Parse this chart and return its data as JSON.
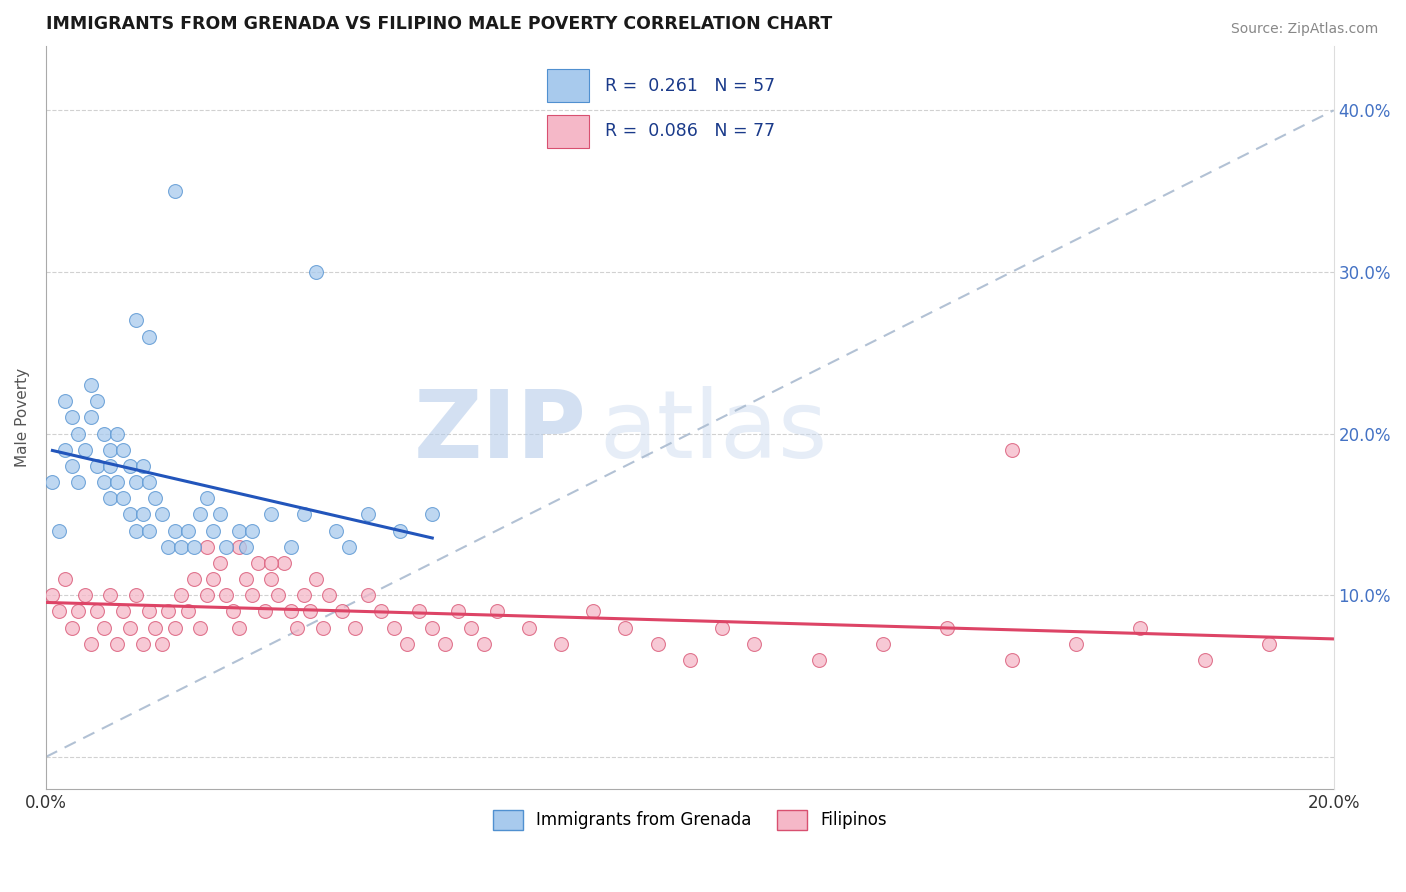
{
  "title": "IMMIGRANTS FROM GRENADA VS FILIPINO MALE POVERTY CORRELATION CHART",
  "source": "Source: ZipAtlas.com",
  "ylabel": "Male Poverty",
  "xlim": [
    0.0,
    0.2
  ],
  "ylim": [
    -0.02,
    0.44
  ],
  "xticks": [
    0.0,
    0.05,
    0.1,
    0.15,
    0.2
  ],
  "xtick_labels": [
    "0.0%",
    "",
    "",
    "",
    "20.0%"
  ],
  "yticks_right": [
    0.0,
    0.1,
    0.2,
    0.3,
    0.4
  ],
  "ytick_labels_right": [
    "",
    "10.0%",
    "20.0%",
    "30.0%",
    "40.0%"
  ],
  "legend_label1": "Immigrants from Grenada",
  "legend_label2": "Filipinos",
  "blue_color": "#A8CAED",
  "blue_edge": "#5090D0",
  "pink_color": "#F5B8C8",
  "pink_edge": "#D85070",
  "trend_blue": "#2255BB",
  "trend_pink": "#DD4466",
  "diag_color": "#AABBD0",
  "watermark_zip": "ZIP",
  "watermark_atlas": "atlas",
  "blue_scatter_x": [
    0.001,
    0.002,
    0.003,
    0.003,
    0.004,
    0.004,
    0.005,
    0.005,
    0.006,
    0.007,
    0.007,
    0.008,
    0.008,
    0.009,
    0.009,
    0.01,
    0.01,
    0.01,
    0.011,
    0.011,
    0.012,
    0.012,
    0.013,
    0.013,
    0.014,
    0.014,
    0.015,
    0.015,
    0.016,
    0.016,
    0.017,
    0.018,
    0.019,
    0.02,
    0.021,
    0.022,
    0.023,
    0.025,
    0.026,
    0.027,
    0.028,
    0.03,
    0.031,
    0.032,
    0.035,
    0.038,
    0.04,
    0.042,
    0.045,
    0.047,
    0.05,
    0.055,
    0.06,
    0.02,
    0.014,
    0.016,
    0.024
  ],
  "blue_scatter_y": [
    0.17,
    0.14,
    0.22,
    0.19,
    0.21,
    0.18,
    0.2,
    0.17,
    0.19,
    0.23,
    0.21,
    0.22,
    0.18,
    0.2,
    0.17,
    0.19,
    0.18,
    0.16,
    0.2,
    0.17,
    0.19,
    0.16,
    0.18,
    0.15,
    0.17,
    0.14,
    0.18,
    0.15,
    0.17,
    0.14,
    0.16,
    0.15,
    0.13,
    0.14,
    0.13,
    0.14,
    0.13,
    0.16,
    0.14,
    0.15,
    0.13,
    0.14,
    0.13,
    0.14,
    0.15,
    0.13,
    0.15,
    0.3,
    0.14,
    0.13,
    0.15,
    0.14,
    0.15,
    0.35,
    0.27,
    0.26,
    0.15
  ],
  "pink_scatter_x": [
    0.001,
    0.002,
    0.003,
    0.004,
    0.005,
    0.006,
    0.007,
    0.008,
    0.009,
    0.01,
    0.011,
    0.012,
    0.013,
    0.014,
    0.015,
    0.016,
    0.017,
    0.018,
    0.019,
    0.02,
    0.021,
    0.022,
    0.023,
    0.024,
    0.025,
    0.026,
    0.027,
    0.028,
    0.029,
    0.03,
    0.031,
    0.032,
    0.033,
    0.034,
    0.035,
    0.036,
    0.037,
    0.038,
    0.039,
    0.04,
    0.041,
    0.042,
    0.043,
    0.044,
    0.046,
    0.048,
    0.05,
    0.052,
    0.054,
    0.056,
    0.058,
    0.06,
    0.062,
    0.064,
    0.066,
    0.068,
    0.07,
    0.075,
    0.08,
    0.085,
    0.09,
    0.095,
    0.1,
    0.105,
    0.11,
    0.12,
    0.13,
    0.14,
    0.15,
    0.16,
    0.17,
    0.18,
    0.19,
    0.15,
    0.03,
    0.025,
    0.035
  ],
  "pink_scatter_y": [
    0.1,
    0.09,
    0.11,
    0.08,
    0.09,
    0.1,
    0.07,
    0.09,
    0.08,
    0.1,
    0.07,
    0.09,
    0.08,
    0.1,
    0.07,
    0.09,
    0.08,
    0.07,
    0.09,
    0.08,
    0.1,
    0.09,
    0.11,
    0.08,
    0.1,
    0.11,
    0.12,
    0.1,
    0.09,
    0.08,
    0.11,
    0.1,
    0.12,
    0.09,
    0.11,
    0.1,
    0.12,
    0.09,
    0.08,
    0.1,
    0.09,
    0.11,
    0.08,
    0.1,
    0.09,
    0.08,
    0.1,
    0.09,
    0.08,
    0.07,
    0.09,
    0.08,
    0.07,
    0.09,
    0.08,
    0.07,
    0.09,
    0.08,
    0.07,
    0.09,
    0.08,
    0.07,
    0.06,
    0.08,
    0.07,
    0.06,
    0.07,
    0.08,
    0.06,
    0.07,
    0.08,
    0.06,
    0.07,
    0.19,
    0.13,
    0.13,
    0.12
  ]
}
